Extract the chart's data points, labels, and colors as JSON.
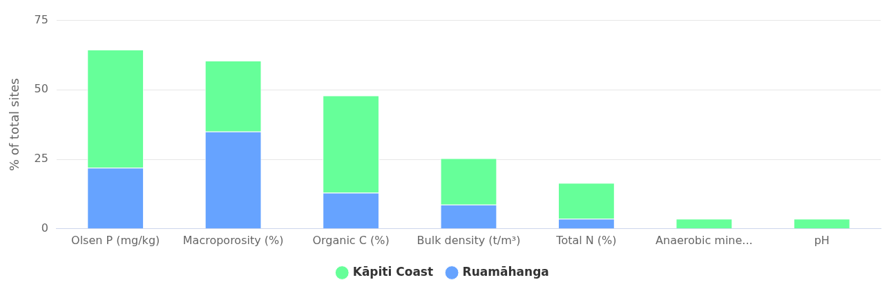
{
  "chart_data": {
    "type": "bar",
    "stacked": true,
    "ylabel": "% of total sites",
    "categories": [
      "Olsen P (mg/kg)",
      "Macroporosity (%)",
      "Organic C (%)",
      "Bulk density (t/m³)",
      "Total N (%)",
      "Anaerobic mine...",
      "pH"
    ],
    "series": [
      {
        "name": "Ruamāhanga",
        "color": "#66a3ff",
        "values": [
          22,
          35,
          13,
          8.7,
          3.6,
          0,
          0
        ]
      },
      {
        "name": "Kāpiti Coast",
        "color": "#66ff99",
        "values": [
          42.5,
          25.5,
          35,
          16.7,
          12.9,
          3.6,
          3.6
        ]
      }
    ],
    "ylim": [
      0,
      75
    ],
    "yticks": [
      0,
      25,
      50,
      75
    ],
    "grid": "y",
    "legend": "bottom"
  }
}
